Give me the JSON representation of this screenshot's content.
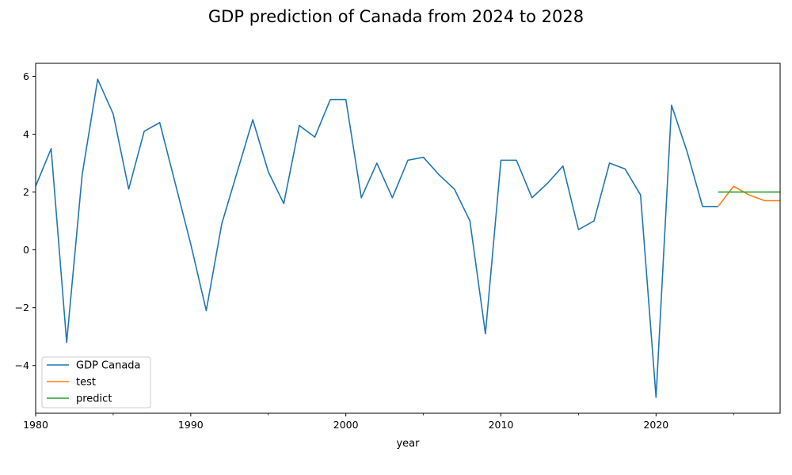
{
  "chart_data": {
    "type": "line",
    "title": "GDP prediction of Canada from 2024 to 2028",
    "xlabel": "year",
    "ylabel": "",
    "xlim": [
      1980,
      2028
    ],
    "ylim": [
      -5.65,
      6.45
    ],
    "x_ticks": [
      1980,
      1990,
      2000,
      2010,
      2020
    ],
    "x_tick_labels": [
      "1980",
      "1990",
      "2000",
      "2010",
      "2020"
    ],
    "x_minor_ticks": [
      1985,
      1995,
      2005,
      2015,
      2025
    ],
    "y_ticks": [
      -4,
      -2,
      0,
      2,
      4,
      6
    ],
    "y_tick_labels": [
      "−4",
      "−2",
      "0",
      "2",
      "4",
      "6"
    ],
    "grid": false,
    "legend_position": "lower-left",
    "series": [
      {
        "name": "GDP Canada",
        "color": "#1f77b4",
        "x": [
          1980,
          1981,
          1982,
          1983,
          1984,
          1985,
          1986,
          1987,
          1988,
          1989,
          1990,
          1991,
          1992,
          1993,
          1994,
          1995,
          1996,
          1997,
          1998,
          1999,
          2000,
          2001,
          2002,
          2003,
          2004,
          2005,
          2006,
          2007,
          2008,
          2009,
          2010,
          2011,
          2012,
          2013,
          2014,
          2015,
          2016,
          2017,
          2018,
          2019,
          2020,
          2021,
          2022,
          2023,
          2024
        ],
        "y": [
          2.2,
          3.5,
          -3.2,
          2.6,
          5.9,
          4.7,
          2.1,
          4.1,
          4.4,
          2.3,
          0.2,
          -2.1,
          0.9,
          2.7,
          4.5,
          2.7,
          1.6,
          4.3,
          3.9,
          5.2,
          5.2,
          1.8,
          3.0,
          1.8,
          3.1,
          3.2,
          2.6,
          2.1,
          1.0,
          -2.9,
          3.1,
          3.1,
          1.8,
          2.3,
          2.9,
          0.7,
          1.0,
          3.0,
          2.8,
          1.9,
          -5.1,
          5.0,
          3.4,
          1.5,
          1.5
        ]
      },
      {
        "name": "test",
        "color": "#ff7f0e",
        "x": [
          2024,
          2025,
          2026,
          2027,
          2028
        ],
        "y": [
          1.5,
          2.2,
          1.9,
          1.7,
          1.7
        ]
      },
      {
        "name": "predict",
        "color": "#2ca02c",
        "x": [
          2024,
          2025,
          2026,
          2027,
          2028
        ],
        "y": [
          2.0,
          2.0,
          2.0,
          2.0,
          2.0
        ]
      }
    ]
  }
}
